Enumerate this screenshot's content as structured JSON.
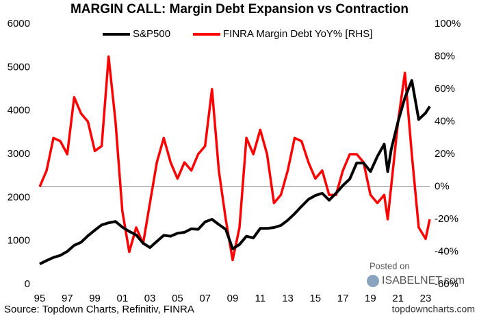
{
  "chart_data": {
    "type": "line",
    "title": "MARGIN CALL: Margin Debt Expansion vs Contraction",
    "source": "Source: Topdown Charts, Refinitiv, FINRA",
    "credit": "topdowncharts.com",
    "annotations": [
      "Posted on",
      "ISABELNET.com"
    ],
    "x": [
      1995,
      1995.5,
      1996,
      1996.5,
      1997,
      1997.5,
      1998,
      1998.5,
      1999,
      1999.5,
      2000,
      2000.5,
      2001,
      2001.5,
      2002,
      2002.5,
      2003,
      2003.5,
      2004,
      2004.5,
      2005,
      2005.5,
      2006,
      2006.5,
      2007,
      2007.5,
      2008,
      2008.5,
      2009,
      2009.5,
      2010,
      2010.5,
      2011,
      2011.5,
      2012,
      2012.5,
      2013,
      2013.5,
      2014,
      2014.5,
      2015,
      2015.5,
      2016,
      2016.5,
      2017,
      2017.5,
      2018,
      2018.5,
      2019,
      2019.5,
      2020,
      2020.25,
      2020.5,
      2021,
      2021.5,
      2022,
      2022.5,
      2023,
      2023.3
    ],
    "series": [
      {
        "name": "S&P500",
        "color": "#000000",
        "values": [
          470,
          550,
          620,
          670,
          760,
          900,
          970,
          1120,
          1250,
          1370,
          1420,
          1450,
          1320,
          1220,
          1140,
          950,
          850,
          990,
          1130,
          1110,
          1180,
          1200,
          1280,
          1270,
          1440,
          1500,
          1380,
          1270,
          820,
          920,
          1110,
          1070,
          1290,
          1290,
          1310,
          1360,
          1480,
          1630,
          1800,
          1960,
          2050,
          2100,
          1940,
          2100,
          2280,
          2430,
          2800,
          2800,
          2600,
          2950,
          3230,
          2600,
          3100,
          3750,
          4300,
          4700,
          3800,
          3950,
          4100
        ]
      },
      {
        "name": "FINRA Margin Debt YoY% [RHS]",
        "color": "#ff0000",
        "axis": "y2",
        "values": [
          0,
          10,
          30,
          28,
          20,
          55,
          45,
          40,
          22,
          25,
          80,
          40,
          -15,
          -40,
          -25,
          -35,
          -10,
          15,
          30,
          15,
          5,
          15,
          10,
          20,
          25,
          60,
          10,
          -20,
          -45,
          -25,
          30,
          20,
          35,
          20,
          -10,
          -5,
          10,
          30,
          28,
          15,
          5,
          10,
          -5,
          -5,
          10,
          20,
          20,
          15,
          -5,
          -10,
          -5,
          -20,
          0,
          40,
          70,
          20,
          -25,
          -32,
          -20
        ]
      }
    ],
    "xlim": [
      1995,
      2023.3
    ],
    "xticks": [
      {
        "value": 1995,
        "label": "95"
      },
      {
        "value": 1997,
        "label": "97"
      },
      {
        "value": 1999,
        "label": "99"
      },
      {
        "value": 2001,
        "label": "01"
      },
      {
        "value": 2003,
        "label": "03"
      },
      {
        "value": 2005,
        "label": "05"
      },
      {
        "value": 2007,
        "label": "07"
      },
      {
        "value": 2009,
        "label": "09"
      },
      {
        "value": 2011,
        "label": "11"
      },
      {
        "value": 2013,
        "label": "13"
      },
      {
        "value": 2015,
        "label": "15"
      },
      {
        "value": 2017,
        "label": "17"
      },
      {
        "value": 2019,
        "label": "19"
      },
      {
        "value": 2021,
        "label": "21"
      },
      {
        "value": 2023,
        "label": "23"
      }
    ],
    "ylim": [
      0,
      6000
    ],
    "yticks": [
      0,
      1000,
      2000,
      3000,
      4000,
      5000,
      6000
    ],
    "y2lim": [
      -60,
      100
    ],
    "y2ticks": [
      {
        "value": -60,
        "label": "-60%"
      },
      {
        "value": -40,
        "label": "-40%"
      },
      {
        "value": -20,
        "label": "-20%"
      },
      {
        "value": 0,
        "label": "0%"
      },
      {
        "value": 20,
        "label": "20%"
      },
      {
        "value": 40,
        "label": "40%"
      },
      {
        "value": 60,
        "label": "60%"
      },
      {
        "value": 80,
        "label": "80%"
      },
      {
        "value": 100,
        "label": "100%"
      }
    ],
    "zero_line": true,
    "legend": "top"
  }
}
